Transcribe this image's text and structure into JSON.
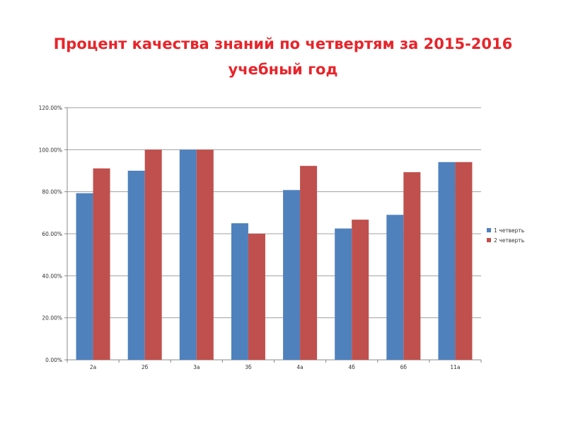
{
  "title": {
    "line1": "Процент качества знаний по четвертям за 2015-2016",
    "line2": "учебный год"
  },
  "colors": {
    "series1": "#4f81bd",
    "series2": "#c0504d",
    "grid": "#a0a0a0",
    "axis": "#888888"
  },
  "chart_data": {
    "type": "bar",
    "categories": [
      "2а",
      "2б",
      "3а",
      "3б",
      "4а",
      "4б",
      "6б",
      "11а"
    ],
    "series": [
      {
        "name": "1 четверть",
        "values": [
          79.3,
          90.0,
          100.0,
          65.0,
          80.8,
          62.5,
          69.0,
          94.1
        ]
      },
      {
        "name": "2 четверть",
        "values": [
          91.1,
          100.0,
          100.0,
          60.0,
          92.3,
          66.7,
          89.3,
          94.1
        ]
      }
    ],
    "yticks": [
      "0.00%",
      "20.00%",
      "40.00%",
      "60.00%",
      "80.00%",
      "100.00%",
      "120.00%"
    ],
    "ylim": [
      0,
      120
    ],
    "grid": true,
    "legend_position": "right"
  }
}
